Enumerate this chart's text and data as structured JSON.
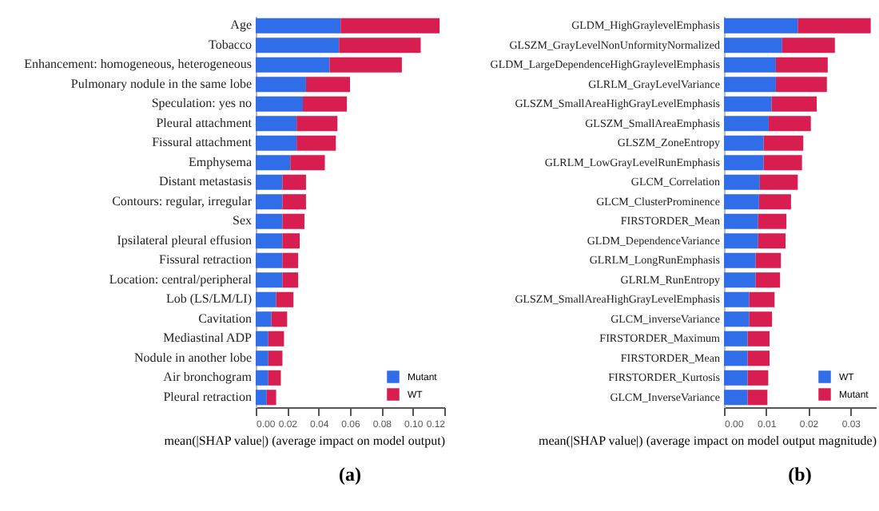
{
  "chart_data": [
    {
      "type": "bar",
      "orientation": "horizontal",
      "stacked": true,
      "xlabel": "mean(|SHAP value|) (average impact on model output)",
      "annotations": [
        "(a)"
      ],
      "categories": [
        "Age",
        "Tobacco",
        "Enhancement: homogeneous, heterogeneous",
        "Pulmonary nodule in the same lobe",
        "Speculation: yes no",
        "Pleural attachment",
        "Fissural attachment",
        "Emphysema",
        "Distant metastasis",
        "Contours: regular, irregular",
        "Sex",
        "Ipsilateral pleural effusion",
        "Fissural retraction",
        "Location: central/peripheral",
        "Lob (LS/LM/LI)",
        "Cavitation",
        "Mediastinal ADP",
        "Nodule in another lobe",
        "Air bronchogram",
        "Pleural retraction"
      ],
      "series": [
        {
          "name": "Mutant",
          "color": "#2f6ee8",
          "values": [
            0.054,
            0.053,
            0.047,
            0.032,
            0.03,
            0.026,
            0.026,
            0.022,
            0.017,
            0.017,
            0.017,
            0.017,
            0.017,
            0.017,
            0.013,
            0.01,
            0.008,
            0.008,
            0.008,
            0.007
          ]
        },
        {
          "name": "WT",
          "color": "#d81e50",
          "values": [
            0.063,
            0.052,
            0.046,
            0.028,
            0.028,
            0.026,
            0.025,
            0.022,
            0.015,
            0.015,
            0.014,
            0.011,
            0.01,
            0.01,
            0.011,
            0.01,
            0.01,
            0.009,
            0.008,
            0.006
          ]
        }
      ],
      "xlim": [
        0,
        0.12
      ],
      "xticks": [
        {
          "value": 0,
          "label": "0.00"
        },
        {
          "value": 0.02,
          "label": "0.02"
        },
        {
          "value": 0.04,
          "label": "0.04"
        },
        {
          "value": 0.06,
          "label": "0.06"
        },
        {
          "value": 0.08,
          "label": "0.08"
        },
        {
          "value": 0.1,
          "label": "0.10"
        },
        {
          "value": 0.12,
          "label": "0.12"
        }
      ],
      "legend": "bottom right"
    },
    {
      "type": "bar",
      "orientation": "horizontal",
      "stacked": true,
      "xlabel": "mean(|SHAP value|) (average impact on model output magnitude)",
      "annotations": [
        "(b)"
      ],
      "categories": [
        "GLDM_HighGraylevelEmphasis",
        "GLSZM_GrayLevelNonUnformityNormalized",
        "GLDM_LargeDependenceHighGraylevelEmphasis",
        "GLRLM_GrayLevelVariance",
        "GLSZM_SmallAreaHighGrayLevelEmphasis",
        "GLSZM_SmallAreaEmphasis",
        "GLSZM_ZoneEntropy",
        "GLRLM_LowGrayLevelRunEmphasis",
        "GLCM_Correlation",
        "GLCM_ClusterProminence",
        "FIRSTORDER_Mean",
        "GLDM_DependenceVariance",
        "GLRLM_LongRunEmphasis",
        "GLRLM_RunEntropy",
        "GLSZM_SmallAreaHighGrayLevelEmphasis",
        "GLCM_inverseVariance",
        "FIRSTORDER_Maximum",
        "FIRSTORDER_Mean",
        "FIRSTORDER_Kurtosis",
        "GLCM_InverseVariance"
      ],
      "series": [
        {
          "name": "WT",
          "color": "#2f6ee8",
          "values": [
            0.0175,
            0.0138,
            0.0123,
            0.0123,
            0.0113,
            0.0106,
            0.0094,
            0.0094,
            0.0085,
            0.0083,
            0.0081,
            0.0081,
            0.0075,
            0.0075,
            0.006,
            0.006,
            0.0056,
            0.0056,
            0.0056,
            0.0056
          ]
        },
        {
          "name": "Mutant",
          "color": "#d81e50",
          "values": [
            0.0173,
            0.0125,
            0.0123,
            0.0121,
            0.0107,
            0.01,
            0.0094,
            0.0091,
            0.009,
            0.0076,
            0.0067,
            0.0065,
            0.006,
            0.0058,
            0.006,
            0.0054,
            0.0052,
            0.0052,
            0.0049,
            0.0047
          ]
        }
      ],
      "xlim": [
        0,
        0.036
      ],
      "xticks": [
        {
          "value": 0,
          "label": "0.00"
        },
        {
          "value": 0.01,
          "label": "0.01"
        },
        {
          "value": 0.02,
          "label": "0.02"
        },
        {
          "value": 0.03,
          "label": "0.03"
        }
      ],
      "legend": "bottom right"
    }
  ]
}
